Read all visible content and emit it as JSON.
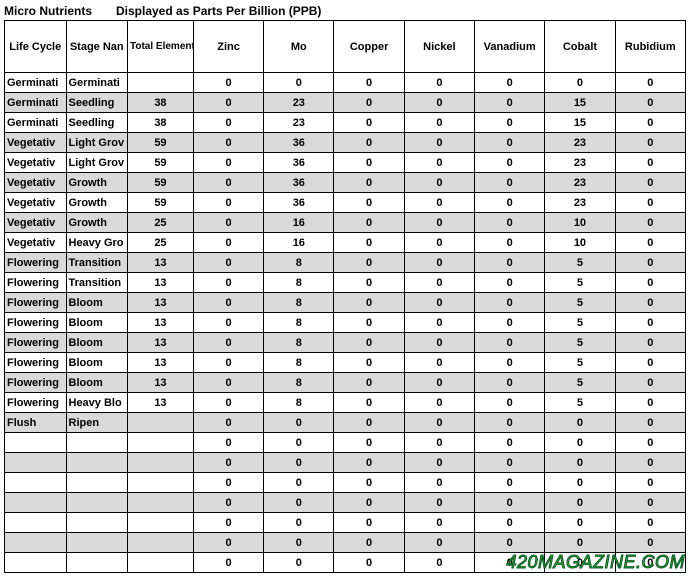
{
  "title_left": "Micro Nutrients",
  "title_right": "Displayed as Parts Per Billion (PPB)",
  "columns": {
    "life_cycle": "Life Cycle",
    "stage_name": "Stage Nan",
    "total": "Total Elemental PPBs",
    "zinc": "Zinc",
    "mo": "Mo",
    "copper": "Copper",
    "nickel": "Nickel",
    "vanadium": "Vanadium",
    "cobalt": "Cobalt",
    "rubidium": "Rubidium"
  },
  "rows": [
    {
      "shade": false,
      "lc": "Germinati",
      "sn": "Germinati",
      "tot": "",
      "z": "0",
      "mo": "0",
      "cu": "0",
      "ni": "0",
      "v": "0",
      "co": "0",
      "rb": "0"
    },
    {
      "shade": true,
      "lc": "Germinati",
      "sn": "Seedling",
      "tot": "38",
      "z": "0",
      "mo": "23",
      "cu": "0",
      "ni": "0",
      "v": "0",
      "co": "15",
      "rb": "0"
    },
    {
      "shade": false,
      "lc": "Germinati",
      "sn": "Seedling",
      "tot": "38",
      "z": "0",
      "mo": "23",
      "cu": "0",
      "ni": "0",
      "v": "0",
      "co": "15",
      "rb": "0"
    },
    {
      "shade": true,
      "lc": "Vegetativ",
      "sn": "Light Grov",
      "tot": "59",
      "z": "0",
      "mo": "36",
      "cu": "0",
      "ni": "0",
      "v": "0",
      "co": "23",
      "rb": "0"
    },
    {
      "shade": false,
      "lc": "Vegetativ",
      "sn": "Light Grov",
      "tot": "59",
      "z": "0",
      "mo": "36",
      "cu": "0",
      "ni": "0",
      "v": "0",
      "co": "23",
      "rb": "0"
    },
    {
      "shade": true,
      "lc": "Vegetativ",
      "sn": "Growth",
      "tot": "59",
      "z": "0",
      "mo": "36",
      "cu": "0",
      "ni": "0",
      "v": "0",
      "co": "23",
      "rb": "0"
    },
    {
      "shade": false,
      "lc": "Vegetativ",
      "sn": "Growth",
      "tot": "59",
      "z": "0",
      "mo": "36",
      "cu": "0",
      "ni": "0",
      "v": "0",
      "co": "23",
      "rb": "0"
    },
    {
      "shade": true,
      "lc": "Vegetativ",
      "sn": "Growth",
      "tot": "25",
      "z": "0",
      "mo": "16",
      "cu": "0",
      "ni": "0",
      "v": "0",
      "co": "10",
      "rb": "0"
    },
    {
      "shade": false,
      "lc": "Vegetativ",
      "sn": "Heavy Gro",
      "tot": "25",
      "z": "0",
      "mo": "16",
      "cu": "0",
      "ni": "0",
      "v": "0",
      "co": "10",
      "rb": "0"
    },
    {
      "shade": true,
      "lc": "Flowering",
      "sn": "Transition",
      "tot": "13",
      "z": "0",
      "mo": "8",
      "cu": "0",
      "ni": "0",
      "v": "0",
      "co": "5",
      "rb": "0"
    },
    {
      "shade": false,
      "lc": "Flowering",
      "sn": "Transition",
      "tot": "13",
      "z": "0",
      "mo": "8",
      "cu": "0",
      "ni": "0",
      "v": "0",
      "co": "5",
      "rb": "0"
    },
    {
      "shade": true,
      "lc": "Flowering",
      "sn": "Bloom",
      "tot": "13",
      "z": "0",
      "mo": "8",
      "cu": "0",
      "ni": "0",
      "v": "0",
      "co": "5",
      "rb": "0"
    },
    {
      "shade": false,
      "lc": "Flowering",
      "sn": "Bloom",
      "tot": "13",
      "z": "0",
      "mo": "8",
      "cu": "0",
      "ni": "0",
      "v": "0",
      "co": "5",
      "rb": "0"
    },
    {
      "shade": true,
      "lc": "Flowering",
      "sn": "Bloom",
      "tot": "13",
      "z": "0",
      "mo": "8",
      "cu": "0",
      "ni": "0",
      "v": "0",
      "co": "5",
      "rb": "0"
    },
    {
      "shade": false,
      "lc": "Flowering",
      "sn": "Bloom",
      "tot": "13",
      "z": "0",
      "mo": "8",
      "cu": "0",
      "ni": "0",
      "v": "0",
      "co": "5",
      "rb": "0"
    },
    {
      "shade": true,
      "lc": "Flowering",
      "sn": "Bloom",
      "tot": "13",
      "z": "0",
      "mo": "8",
      "cu": "0",
      "ni": "0",
      "v": "0",
      "co": "5",
      "rb": "0"
    },
    {
      "shade": false,
      "lc": "Flowering",
      "sn": "Heavy Blo",
      "tot": "13",
      "z": "0",
      "mo": "8",
      "cu": "0",
      "ni": "0",
      "v": "0",
      "co": "5",
      "rb": "0"
    },
    {
      "shade": true,
      "lc": "Flush",
      "sn": "Ripen",
      "tot": "",
      "z": "0",
      "mo": "0",
      "cu": "0",
      "ni": "0",
      "v": "0",
      "co": "0",
      "rb": "0"
    },
    {
      "shade": false,
      "lc": "",
      "sn": "",
      "tot": "",
      "z": "0",
      "mo": "0",
      "cu": "0",
      "ni": "0",
      "v": "0",
      "co": "0",
      "rb": "0"
    },
    {
      "shade": true,
      "lc": "",
      "sn": "",
      "tot": "",
      "z": "0",
      "mo": "0",
      "cu": "0",
      "ni": "0",
      "v": "0",
      "co": "0",
      "rb": "0"
    },
    {
      "shade": false,
      "lc": "",
      "sn": "",
      "tot": "",
      "z": "0",
      "mo": "0",
      "cu": "0",
      "ni": "0",
      "v": "0",
      "co": "0",
      "rb": "0"
    },
    {
      "shade": true,
      "lc": "",
      "sn": "",
      "tot": "",
      "z": "0",
      "mo": "0",
      "cu": "0",
      "ni": "0",
      "v": "0",
      "co": "0",
      "rb": "0"
    },
    {
      "shade": false,
      "lc": "",
      "sn": "",
      "tot": "",
      "z": "0",
      "mo": "0",
      "cu": "0",
      "ni": "0",
      "v": "0",
      "co": "0",
      "rb": "0"
    },
    {
      "shade": true,
      "lc": "",
      "sn": "",
      "tot": "",
      "z": "0",
      "mo": "0",
      "cu": "0",
      "ni": "0",
      "v": "0",
      "co": "0",
      "rb": "0"
    },
    {
      "shade": false,
      "lc": "",
      "sn": "",
      "tot": "",
      "z": "0",
      "mo": "0",
      "cu": "0",
      "ni": "0",
      "v": "0",
      "co": "0",
      "rb": "0"
    }
  ],
  "watermark": "420MAGAZINE.COM",
  "colors": {
    "shade": "#d9d9d9",
    "bg": "#ffffff",
    "border": "#000000",
    "watermark_fill": "#39b54a",
    "watermark_stroke": "#0a5c1f"
  }
}
